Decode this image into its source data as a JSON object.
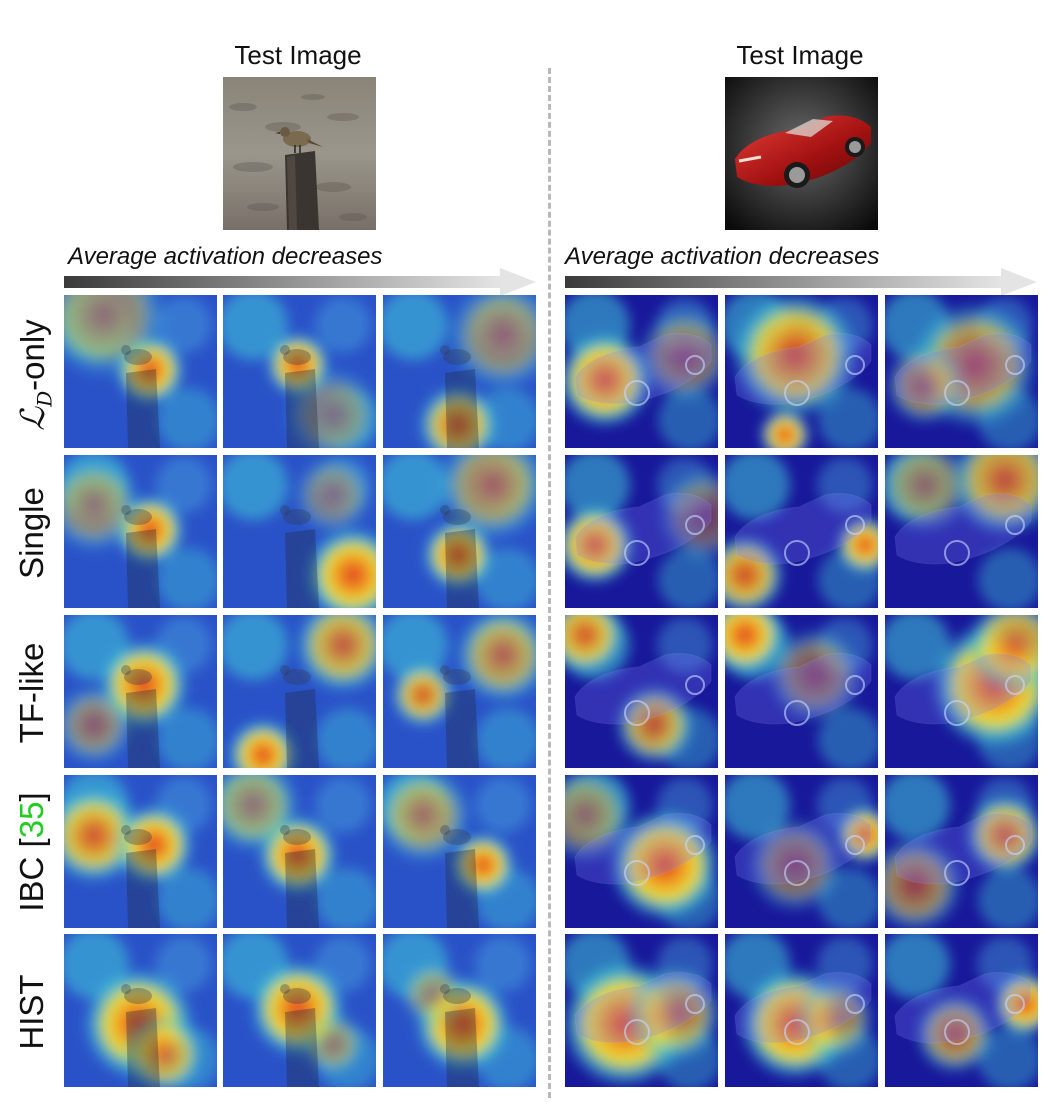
{
  "left_panel": {
    "title": "Test Image",
    "image_icon": "bird-on-post-photo",
    "axis_label": "Average activation decreases"
  },
  "right_panel": {
    "title": "Test Image",
    "image_icon": "red-car-photo",
    "axis_label": "Average activation decreases"
  },
  "rows": [
    {
      "label_main": "ℒ",
      "label_sub": "D",
      "label_suffix": "-only"
    },
    {
      "label": "Single"
    },
    {
      "label": "TF-like"
    },
    {
      "label_main": "IBC [",
      "label_ref": "35",
      "label_close": "]"
    },
    {
      "label": "HIST"
    }
  ],
  "colors": {
    "heat_low": "#1a1aa8",
    "heat_mid": "#3fc8d8",
    "heat_high": "#e03020",
    "arrow_start": "#3a3a3a",
    "arrow_end": "#e6e6e6",
    "ref_green": "#22cc22",
    "divider": "#b9b9b9"
  }
}
